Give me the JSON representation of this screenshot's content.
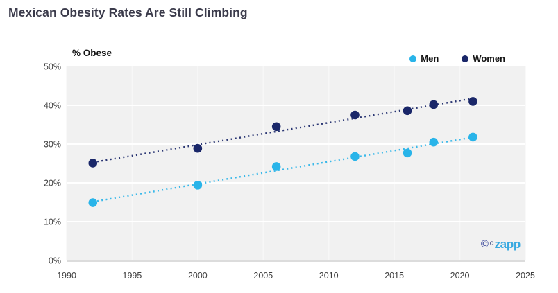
{
  "watermark": {
    "copyright_symbol": "©",
    "brand_prefix": "c",
    "brand_name": "zapp"
  },
  "chart_data": {
    "type": "scatter",
    "title": "Mexican Obesity Rates Are Still Climbing",
    "ylabel": "% Obese",
    "xlabel": "",
    "x": [
      1992,
      2000,
      2006,
      2012,
      2016,
      2018,
      2021
    ],
    "series": [
      {
        "name": "Men",
        "color": "#29b4e9",
        "values": [
          14.9,
          19.4,
          24.2,
          26.8,
          27.7,
          30.5,
          31.8
        ]
      },
      {
        "name": "Women",
        "color": "#1a2769",
        "values": [
          25.1,
          28.9,
          34.5,
          37.5,
          38.6,
          40.2,
          41.0
        ]
      }
    ],
    "xlim": [
      1990,
      2025
    ],
    "ylim": [
      0,
      50
    ],
    "x_ticks": [
      1990,
      1995,
      2000,
      2005,
      2010,
      2015,
      2020,
      2025
    ],
    "y_ticks": [
      0,
      10,
      20,
      30,
      40,
      50
    ],
    "y_tick_suffix": "%",
    "grid": true,
    "plot_bg_color": "#f1f1f1",
    "tick_color": "#3f3f3f",
    "legend_position": "top-right",
    "marker_style": "filled-circle",
    "trendline_style": "dotted"
  }
}
